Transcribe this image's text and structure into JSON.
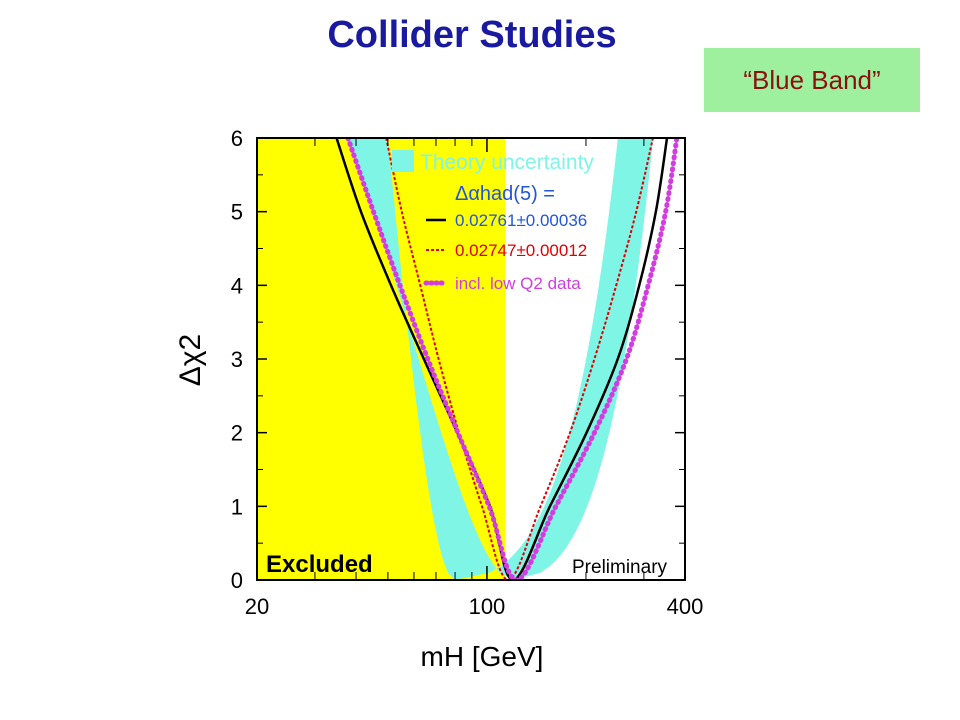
{
  "slide": {
    "title": "Collider Studies",
    "callout": "“Blue Band”"
  },
  "colors": {
    "title": "#1a1aa0",
    "callout_bg": "#9ef09e",
    "callout_text": "#8b1010",
    "excluded_region": "#ffff00",
    "theory_band": "#7ff5e6",
    "black_curve": "#000000",
    "red_curve": "#e00000",
    "magenta_curve": "#d23ce0",
    "legend_blue": "#2255dd"
  },
  "chart_data": {
    "type": "line",
    "xscale": "log",
    "xlim": [
      20,
      400
    ],
    "ylim": [
      0,
      6
    ],
    "xticks": [
      "20",
      "100",
      "400"
    ],
    "yticks": [
      "0",
      "1",
      "2",
      "3",
      "4",
      "5",
      "6"
    ],
    "xlabel": "mH [GeV]",
    "ylabel": "Δχ2",
    "excluded": {
      "label": "Excluded",
      "x_range": [
        20,
        114
      ]
    },
    "preliminary_label": "Preliminary",
    "legend": {
      "band_label": "Theory uncertainty",
      "header": "Δαhad(5) =",
      "entries": [
        "0.02761±0.00036",
        "0.02747±0.00012",
        "incl. low Q2 data"
      ]
    },
    "series": [
      {
        "name": "0.02761±0.00036",
        "style": "solid",
        "band": {
          "x_lower": [
            38,
            50,
            80,
            120
          ],
          "x_upper": [
            250,
            320
          ]
        },
        "x": [
          34.9,
          41.4,
          51.1,
          64.3,
          81.3,
          102.1,
          120.0,
          155.4,
          200.8,
          249.8,
          290.4,
          326.2,
          352.7
        ],
        "y": [
          6.0,
          5.0,
          4.0,
          3.0,
          2.0,
          1.0,
          0.0,
          1.0,
          2.0,
          3.0,
          4.0,
          5.0,
          6.0
        ]
      },
      {
        "name": "0.02747±0.00012",
        "style": "dashed",
        "x": [
          49.4,
          55.1,
          62.7,
          71.3,
          82.2,
          96.6,
          116.0,
          145.5,
          178.8,
          212.2,
          247.2,
          284.3,
          319.6
        ],
        "y": [
          6.0,
          5.0,
          4.0,
          3.0,
          2.0,
          1.0,
          0.0,
          1.0,
          2.0,
          3.0,
          4.0,
          5.0,
          6.0
        ]
      },
      {
        "name": "incl. low Q2 data",
        "style": "dotted",
        "x": [
          37.8,
          45.2,
          54.4,
          66.1,
          81.6,
          101.6,
          123.0,
          162.0,
          212.2,
          265.5,
          309.1,
          349.4,
          377.8
        ],
        "y": [
          6.0,
          5.0,
          4.0,
          3.0,
          2.0,
          1.0,
          0.0,
          1.0,
          2.0,
          3.0,
          4.0,
          5.0,
          6.0
        ]
      }
    ]
  }
}
